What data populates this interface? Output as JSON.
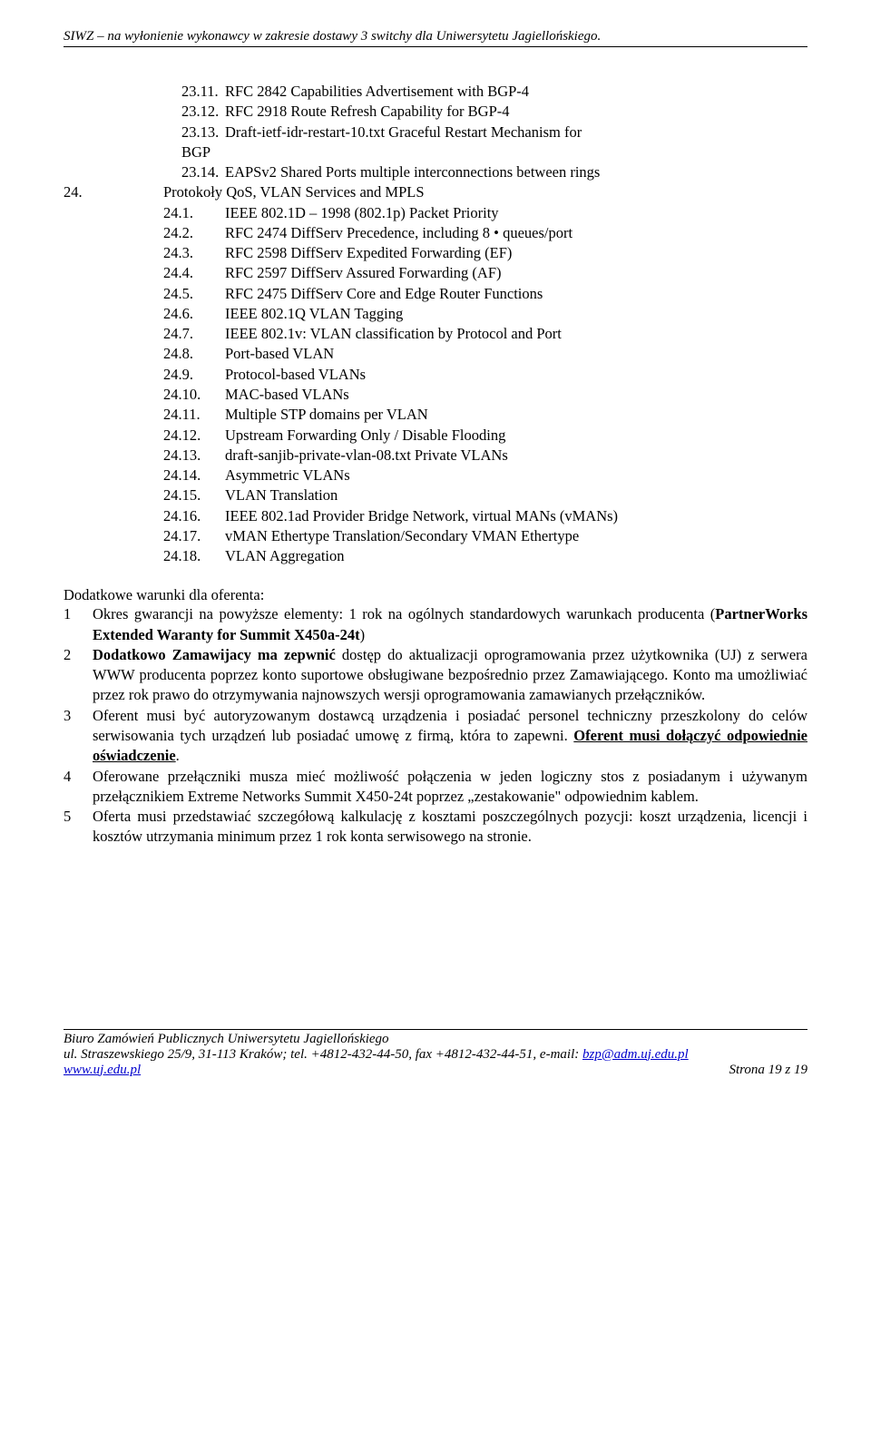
{
  "header": "SIWZ – na wyłonienie wykonawcy w zakresie dostawy 3 switchy dla Uniwersytetu Jagiellońskiego.",
  "items23": [
    {
      "n": "23.11.",
      "t": "RFC 2842 Capabilities Advertisement with BGP-4"
    },
    {
      "n": "23.12.",
      "t": "RFC 2918 Route Refresh Capability for BGP-4"
    },
    {
      "n": "23.13.",
      "t": "Draft-ietf-idr-restart-10.txt Graceful Restart Mechanism for"
    }
  ],
  "bgp": "BGP",
  "item2314": {
    "n": "23.14.",
    "t": "EAPSv2 Shared Ports multiple interconnections between rings"
  },
  "item24": {
    "n": "24.",
    "t": "Protokoły QoS, VLAN Services and MPLS"
  },
  "sub24": [
    {
      "n": "24.1.",
      "t": "IEEE 802.1D – 1998 (802.1p) Packet Priority"
    },
    {
      "n": "24.2.",
      "t": "RFC 2474 DiffServ Precedence, including 8 • queues/port"
    },
    {
      "n": "24.3.",
      "t": "RFC 2598 DiffServ Expedited Forwarding (EF)"
    },
    {
      "n": "24.4.",
      "t": "RFC 2597 DiffServ Assured Forwarding (AF)"
    },
    {
      "n": "24.5.",
      "t": "RFC 2475 DiffServ Core and Edge Router Functions"
    },
    {
      "n": "24.6.",
      "t": "IEEE 802.1Q VLAN Tagging"
    },
    {
      "n": "24.7.",
      "t": "IEEE 802.1v: VLAN classification by Protocol and Port"
    },
    {
      "n": "24.8.",
      "t": "Port-based VLAN"
    },
    {
      "n": "24.9.",
      "t": "Protocol-based VLANs"
    },
    {
      "n": "24.10.",
      "t": "MAC-based VLANs"
    },
    {
      "n": "24.11.",
      "t": "Multiple STP domains per VLAN"
    },
    {
      "n": "24.12.",
      "t": "Upstream Forwarding Only / Disable Flooding"
    },
    {
      "n": "24.13.",
      "t": "draft-sanjib-private-vlan-08.txt Private VLANs"
    },
    {
      "n": "24.14.",
      "t": "Asymmetric VLANs"
    },
    {
      "n": "24.15.",
      "t": "VLAN Translation"
    },
    {
      "n": "24.16.",
      "t": "IEEE 802.1ad Provider Bridge Network, virtual MANs (vMANs)"
    },
    {
      "n": "24.17.",
      "t": "vMAN Ethertype Translation/Secondary VMAN Ethertype"
    },
    {
      "n": "24.18.",
      "t": "VLAN Aggregation"
    }
  ],
  "condTitle": "Dodatkowe warunki dla oferenta:",
  "cond": [
    {
      "n": "1",
      "html": "Okres gwarancji na powyższe elementy: 1 rok na ogólnych standardowych warunkach producenta (<b>PartnerWorks Extended Waranty for Summit X450a-24t</b>)"
    },
    {
      "n": "2",
      "html": "<b>Dodatkowo Zamawijacy ma zepwnić</b> dostęp do aktualizacji oprogramowania przez użytkownika (UJ) z serwera WWW producenta poprzez konto suportowe obsługiwane bezpośrednio przez Zamawiającego. Konto ma umożliwiać przez rok prawo do otrzymywania najnowszych wersji oprogramowania zamawianych przełączników."
    },
    {
      "n": "3",
      "html": "Oferent musi być autoryzowanym dostawcą urządzenia i posiadać personel techniczny przeszkolony do celów serwisowania tych urządzeń lub posiadać umowę z firmą, która to zapewni. <b class='underline'>Oferent musi dołączyć odpowiednie oświadczenie</b>."
    },
    {
      "n": "4",
      "html": "Oferowane przełączniki musza mieć możliwość połączenia w jeden logiczny stos z posiadanym i używanym przełącznikiem Extreme Networks Summit X450-24t poprzez „zestakowanie\" odpowiednim kablem."
    },
    {
      "n": "5",
      "html": "Oferta musi przedstawiać szczegółową kalkulację z kosztami poszczególnych pozycji: koszt urządzenia, licencji i kosztów utrzymania minimum przez 1 rok konta serwisowego na stronie."
    }
  ],
  "footer": {
    "l1": "Biuro Zamówień Publicznych Uniwersytetu Jagiellońskiego",
    "l2a": "ul. Straszewskiego 25/9, 31-113 Kraków; tel. +4812-432-44-50, fax +4812-432-44-51, e-mail: ",
    "l2b": "bzp@adm.uj.edu.pl",
    "l3a": "www.uj.edu.pl",
    "l3b": "Strona 19 z 19"
  }
}
